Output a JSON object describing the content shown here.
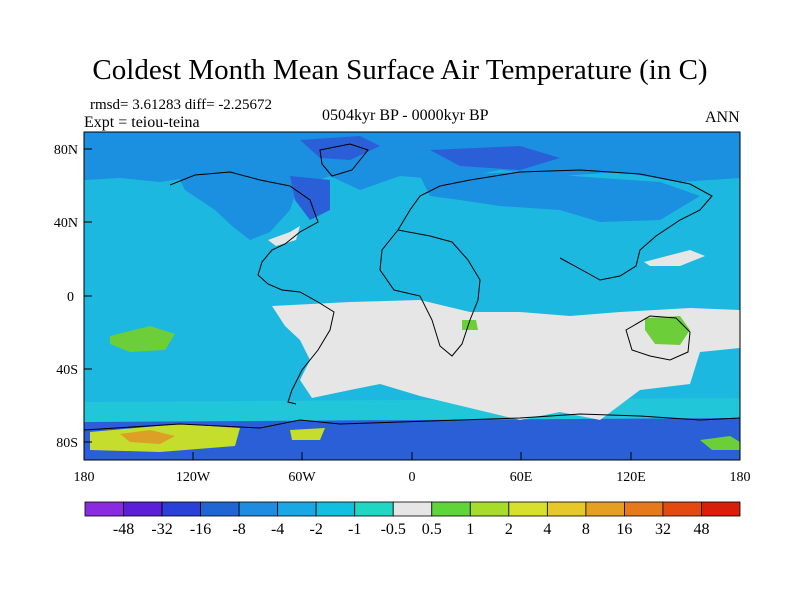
{
  "title": "Coldest Month Mean Surface Air Temperature (in C)",
  "stats": {
    "rmsd_label": "rmsd= 3.61283",
    "diff_label": "diff= -2.25672"
  },
  "experiment": "Expt = teiou-teina",
  "period": "0504kyr BP - 0000kyr BP",
  "season": "ANN",
  "axes": {
    "lat_ticks": [
      "80N",
      "40N",
      "0",
      "40S",
      "80S"
    ],
    "lon_ticks": [
      "180",
      "120W",
      "60W",
      "0",
      "60E",
      "120E",
      "180"
    ]
  },
  "colorbar": {
    "labels": [
      "-48",
      "-32",
      "-16",
      "-8",
      "-4",
      "-2",
      "-1",
      "-0.5",
      "0.5",
      "1",
      "2",
      "4",
      "8",
      "16",
      "32",
      "48"
    ],
    "colors": [
      "#8a2be2",
      "#5a1fd6",
      "#2a40d8",
      "#1f66d4",
      "#1e8ce0",
      "#1aa7e6",
      "#12bfe0",
      "#1fd7c2",
      "#e6e6e6",
      "#5ed63a",
      "#a8dc2a",
      "#d8e02e",
      "#e6c82a",
      "#e6a021",
      "#e67a1a",
      "#e24a10",
      "#d91e0a"
    ]
  },
  "map_colors": {
    "ocean": "#1cb8e0",
    "light_blue": "#21c6d8",
    "mid_blue": "#1b8fe0",
    "dark_blue": "#2a5fd8",
    "neutral": "#e6e6e6",
    "green": "#6ccf3a",
    "yellow": "#c5dd2c",
    "orange": "#dca027",
    "coast": "#000000"
  }
}
